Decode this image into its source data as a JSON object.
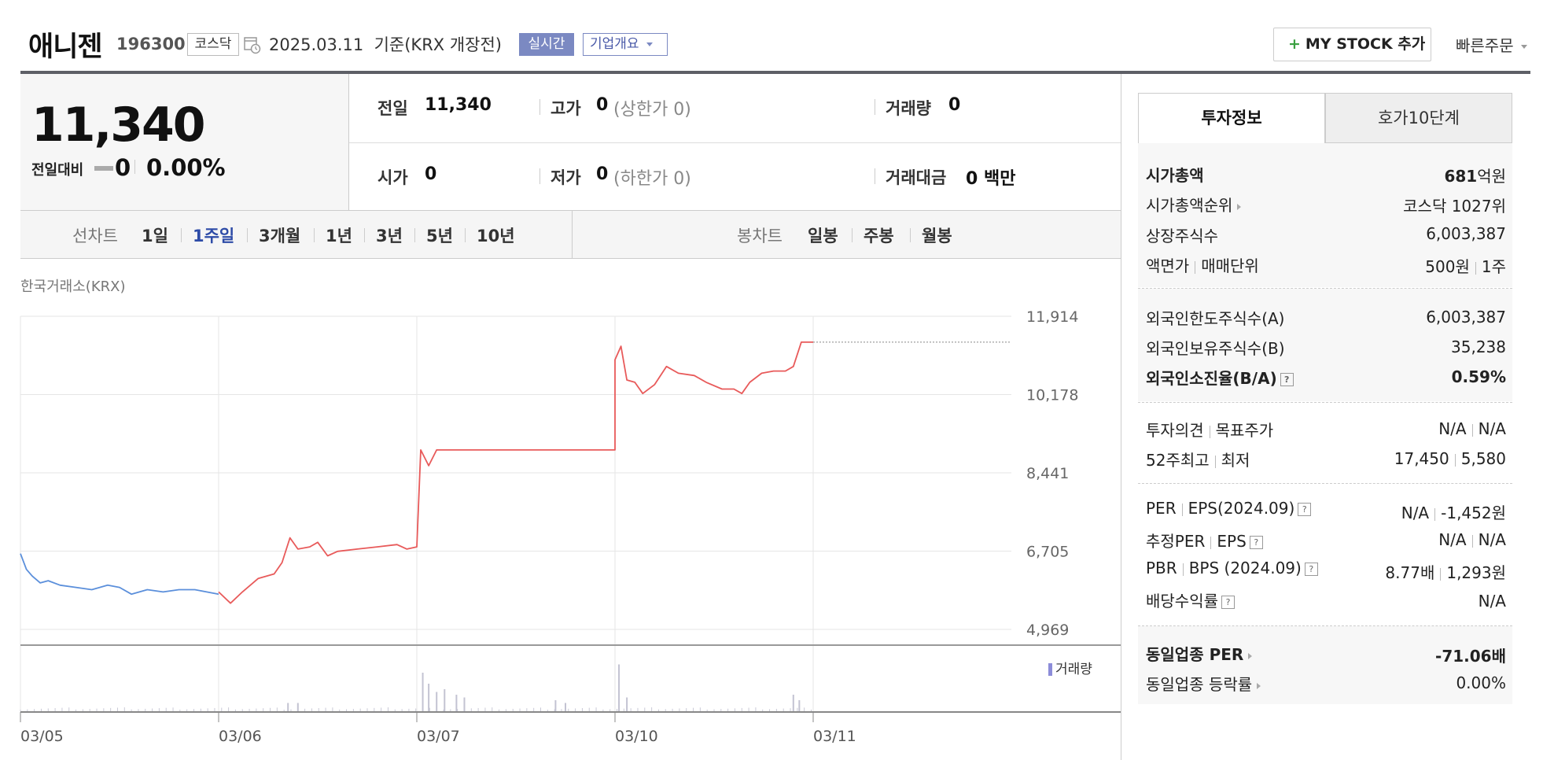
{
  "header": {
    "name": "애니젠",
    "code": "196300",
    "market": "코스닥",
    "date_note": "2025.03.11  기준(KRX 개장전)",
    "realtime_label": "실시간",
    "company_overview_label": "기업개요",
    "mystock_label": "MY STOCK 추가",
    "quick_order_label": "빠른주문"
  },
  "price": {
    "current": "11,340",
    "change_label": "전일대비",
    "change": "0",
    "change_pct": "0.00%"
  },
  "summary": {
    "prev_label": "전일",
    "prev": "11,340",
    "high_label": "고가",
    "high": "0",
    "high_sub": "(상한가 0)",
    "volume_label": "거래량",
    "volume": "0",
    "open_label": "시가",
    "open": "0",
    "low_label": "저가",
    "low": "0",
    "low_sub": "(하한가 0)",
    "amount_label": "거래대금",
    "amount": "0 백만"
  },
  "chart_tabs": {
    "line_label": "선차트",
    "line_items": [
      "1일",
      "1주일",
      "3개월",
      "1년",
      "3년",
      "5년",
      "10년"
    ],
    "active": "1주일",
    "candle_label": "봉차트",
    "candle_items": [
      "일봉",
      "주봉",
      "월봉"
    ]
  },
  "chart_source": "한국거래소(KRX)",
  "volume_legend": "거래량",
  "chart_data": {
    "type": "line",
    "x": [
      "03/05",
      "03/06",
      "03/07",
      "03/10",
      "03/11"
    ],
    "ytick_labels": [
      "11,914",
      "10,178",
      "8,441",
      "6,705",
      "4,969"
    ],
    "ylim": [
      4969,
      11914
    ],
    "series": [
      {
        "color": "#5b8fdb",
        "values": [
          [
            0.0,
            6650
          ],
          [
            0.03,
            6300
          ],
          [
            0.06,
            6150
          ],
          [
            0.1,
            6000
          ],
          [
            0.14,
            6050
          ],
          [
            0.2,
            5950
          ],
          [
            0.28,
            5900
          ],
          [
            0.36,
            5850
          ],
          [
            0.44,
            5950
          ],
          [
            0.5,
            5900
          ],
          [
            0.56,
            5750
          ],
          [
            0.64,
            5850
          ],
          [
            0.72,
            5800
          ],
          [
            0.8,
            5850
          ],
          [
            0.88,
            5850
          ],
          [
            0.94,
            5800
          ],
          [
            1.0,
            5750
          ]
        ]
      },
      {
        "color": "#e85a5a",
        "values": [
          [
            1.0,
            5800
          ],
          [
            1.06,
            5550
          ],
          [
            1.12,
            5800
          ],
          [
            1.2,
            6100
          ],
          [
            1.28,
            6200
          ],
          [
            1.32,
            6450
          ],
          [
            1.36,
            7000
          ],
          [
            1.4,
            6750
          ],
          [
            1.46,
            6800
          ],
          [
            1.5,
            6900
          ],
          [
            1.55,
            6600
          ],
          [
            1.6,
            6700
          ],
          [
            1.7,
            6750
          ],
          [
            1.8,
            6800
          ],
          [
            1.9,
            6850
          ],
          [
            1.95,
            6750
          ],
          [
            2.0,
            6800
          ],
          [
            2.02,
            8950
          ],
          [
            2.06,
            8600
          ],
          [
            2.1,
            8950
          ],
          [
            2.5,
            8950
          ],
          [
            2.56,
            8950
          ],
          [
            2.6,
            8950
          ],
          [
            2.7,
            8950
          ],
          [
            3.0,
            8950
          ],
          [
            3.0,
            10950
          ],
          [
            3.03,
            11250
          ],
          [
            3.06,
            10500
          ],
          [
            3.1,
            10450
          ],
          [
            3.14,
            10200
          ],
          [
            3.2,
            10400
          ],
          [
            3.26,
            10800
          ],
          [
            3.32,
            10650
          ],
          [
            3.4,
            10600
          ],
          [
            3.46,
            10450
          ],
          [
            3.54,
            10300
          ],
          [
            3.6,
            10300
          ],
          [
            3.64,
            10200
          ],
          [
            3.68,
            10450
          ],
          [
            3.74,
            10650
          ],
          [
            3.8,
            10700
          ],
          [
            3.86,
            10700
          ],
          [
            3.9,
            10800
          ],
          [
            3.94,
            11340
          ],
          [
            4.0,
            11340
          ]
        ]
      }
    ],
    "volume_spikes": [
      [
        2.03,
        0.7
      ],
      [
        2.06,
        0.5
      ],
      [
        2.1,
        0.35
      ],
      [
        2.14,
        0.4
      ],
      [
        2.2,
        0.3
      ],
      [
        2.24,
        0.25
      ],
      [
        3.02,
        0.85
      ],
      [
        3.06,
        0.25
      ],
      [
        3.9,
        0.3
      ],
      [
        3.93,
        0.2
      ],
      [
        2.7,
        0.2
      ],
      [
        2.75,
        0.15
      ],
      [
        1.35,
        0.15
      ],
      [
        1.4,
        0.15
      ]
    ]
  },
  "invest_tabs": [
    "투자정보",
    "호가10단계"
  ],
  "invest": {
    "market_cap_label": "시가총액",
    "market_cap_value": "681",
    "market_cap_unit": "억원",
    "cap_rank_label": "시가총액순위",
    "cap_rank_value": "코스닥 1027위",
    "shares_label": "상장주식수",
    "shares_value": "6,003,387",
    "par_label": "액면가",
    "trade_unit_label": "매매단위",
    "par_value": "500원",
    "trade_unit_value": "1주",
    "foreign_limit_label": "외국인한도주식수(A)",
    "foreign_limit_value": "6,003,387",
    "foreign_hold_label": "외국인보유주식수(B)",
    "foreign_hold_value": "35,238",
    "foreign_ratio_label": "외국인소진율(B/A)",
    "foreign_ratio_value": "0.59%",
    "opinion_label": "투자의견",
    "target_label": "목표주가",
    "opinion_value": "N/A",
    "target_value": "N/A",
    "high52_label": "52주최고",
    "low52_label": "최저",
    "high52_value": "17,450",
    "low52_value": "5,580",
    "per_label": "PER",
    "eps_label": "EPS(2024.09)",
    "per_value": "N/A",
    "eps_value": "-1,452원",
    "est_per_label": "추정PER",
    "est_eps_label": "EPS",
    "est_per_value": "N/A",
    "est_eps_value": "N/A",
    "pbr_label": "PBR",
    "bps_label": "BPS (2024.09)",
    "pbr_value": "8.77배",
    "bps_value": "1,293원",
    "div_label": "배당수익률",
    "div_value": "N/A",
    "industry_per_label": "동일업종 PER",
    "industry_per_value": "-71.06배",
    "industry_rate_label": "동일업종 등락률",
    "industry_rate_value": "0.00%"
  },
  "colors": {
    "up": "#e85a5a",
    "down": "#5b8fdb",
    "accent": "#7b89c2",
    "active_tab": "#2d4ba7"
  }
}
